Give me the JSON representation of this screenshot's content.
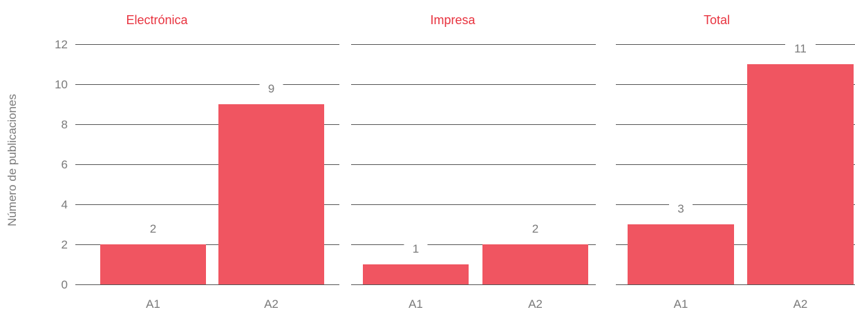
{
  "chart_data": {
    "type": "bar",
    "ylabel": "Número de publicaciones",
    "ylim": [
      0,
      12
    ],
    "yticks": [
      0,
      2,
      4,
      6,
      8,
      10,
      12
    ],
    "grid": true,
    "bar_color": "#f05561",
    "title_color": "#e8333f",
    "panels": [
      {
        "title": "Electrónica",
        "categories": [
          "A1",
          "A2"
        ],
        "values": [
          2,
          9
        ],
        "labels": [
          "2",
          "9"
        ]
      },
      {
        "title": "Impresa",
        "categories": [
          "A1",
          "A2"
        ],
        "values": [
          1,
          2
        ],
        "labels": [
          "1",
          "2"
        ]
      },
      {
        "title": "Total",
        "categories": [
          "A1",
          "A2"
        ],
        "values": [
          3,
          11
        ],
        "labels": [
          "3",
          "11"
        ]
      }
    ]
  }
}
